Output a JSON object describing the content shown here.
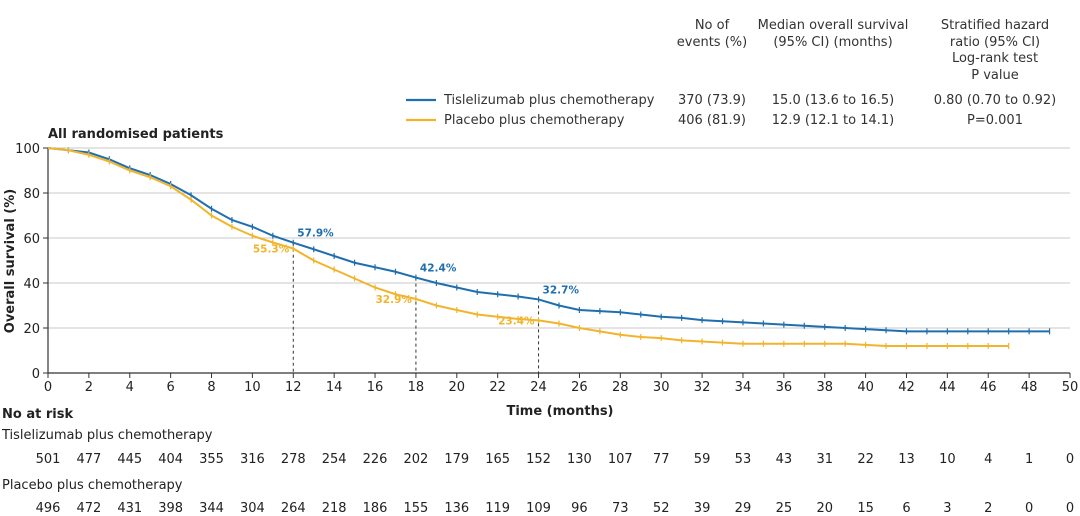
{
  "colors": {
    "tislelizumab": "#1f6fae",
    "placebo": "#f2b42c",
    "axis": "#333333",
    "grid": "#c8c8c8",
    "dash": "#333333"
  },
  "table_header": {
    "col1": [
      "No of",
      "events (%)"
    ],
    "col2": [
      "Median overall survival",
      "(95% CI) (months)"
    ],
    "col3": [
      "Stratified hazard",
      "ratio (95% CI)",
      "Log-rank test",
      "P value"
    ]
  },
  "legend_rows": [
    {
      "series": "Tislelizumab plus chemotherapy",
      "events": "370 (73.9)",
      "median": "15.0 (13.6 to 16.5)",
      "hr": "0.80 (0.70 to 0.92)"
    },
    {
      "series": "Placebo plus chemotherapy",
      "events": "406 (81.9)",
      "median": "12.9 (12.1 to 14.1)",
      "hr": "P=0.001"
    }
  ],
  "chart_data": {
    "type": "line",
    "subtitle": "All randomised patients",
    "xlabel": "Time (months)",
    "ylabel": "Overall survival (%)",
    "xlim": [
      0,
      50
    ],
    "ylim": [
      0,
      100
    ],
    "xticks": [
      0,
      2,
      4,
      6,
      8,
      10,
      12,
      14,
      16,
      18,
      20,
      22,
      24,
      26,
      28,
      30,
      32,
      34,
      36,
      38,
      40,
      42,
      44,
      46,
      48,
      50
    ],
    "yticks": [
      0,
      20,
      40,
      60,
      80,
      100
    ],
    "grid": true,
    "series": [
      {
        "name": "Tislelizumab plus chemotherapy",
        "x": [
          0,
          1,
          2,
          3,
          4,
          5,
          6,
          7,
          8,
          9,
          10,
          11,
          12,
          13,
          14,
          15,
          16,
          17,
          18,
          19,
          20,
          21,
          22,
          23,
          24,
          25,
          26,
          27,
          28,
          29,
          30,
          31,
          32,
          33,
          34,
          35,
          36,
          37,
          38,
          39,
          40,
          41,
          42,
          43,
          44,
          45,
          46,
          47,
          48,
          49
        ],
        "y": [
          100,
          99,
          98,
          95,
          91,
          88,
          84,
          79,
          73,
          68,
          65,
          61,
          57.9,
          55,
          52,
          49,
          47,
          45,
          42.4,
          40,
          38,
          36,
          35,
          34,
          32.7,
          30,
          28,
          27.5,
          27,
          26,
          25,
          24.5,
          23.5,
          23,
          22.5,
          22,
          21.5,
          21,
          20.5,
          20,
          19.5,
          19,
          18.5,
          18.5,
          18.5,
          18.5,
          18.5,
          18.5,
          18.5,
          18.5
        ]
      },
      {
        "name": "Placebo plus chemotherapy",
        "x": [
          0,
          1,
          2,
          3,
          4,
          5,
          6,
          7,
          8,
          9,
          10,
          11,
          12,
          13,
          14,
          15,
          16,
          17,
          18,
          19,
          20,
          21,
          22,
          23,
          24,
          25,
          26,
          27,
          28,
          29,
          30,
          31,
          32,
          33,
          34,
          35,
          36,
          37,
          38,
          39,
          40,
          41,
          42,
          43,
          44,
          45,
          46,
          47
        ],
        "y": [
          100,
          99,
          97,
          94,
          90,
          87,
          83,
          77,
          70,
          65,
          61,
          58,
          55.3,
          50,
          46,
          42,
          38,
          35,
          32.9,
          30,
          28,
          26,
          25,
          24,
          23.4,
          22,
          20,
          18.5,
          17,
          16,
          15.5,
          14.5,
          14,
          13.5,
          13,
          13,
          13,
          13,
          13,
          13,
          12.5,
          12,
          12,
          12,
          12,
          12,
          12,
          12
        ]
      }
    ],
    "annotations": [
      {
        "series": 0,
        "x": 12,
        "y": 57.9,
        "label": "57.9%"
      },
      {
        "series": 1,
        "x": 12,
        "y": 55.3,
        "label": "55.3%"
      },
      {
        "series": 0,
        "x": 18,
        "y": 42.4,
        "label": "42.4%"
      },
      {
        "series": 1,
        "x": 18,
        "y": 32.9,
        "label": "32.9%"
      },
      {
        "series": 0,
        "x": 24,
        "y": 32.7,
        "label": "32.7%"
      },
      {
        "series": 1,
        "x": 24,
        "y": 23.4,
        "label": "23.4%"
      }
    ],
    "reference_lines_x": [
      12,
      18,
      24
    ],
    "at_risk": {
      "title": "No at risk",
      "times": [
        0,
        2,
        4,
        6,
        8,
        10,
        12,
        14,
        16,
        18,
        20,
        22,
        24,
        26,
        28,
        30,
        32,
        34,
        36,
        38,
        40,
        42,
        44,
        46,
        48,
        50
      ],
      "rows": [
        {
          "label": "Tislelizumab plus chemotherapy",
          "values": [
            "501",
            "477",
            "445",
            "404",
            "355",
            "316",
            "278",
            "254",
            "226",
            "202",
            "179",
            "165",
            "152",
            "130",
            "107",
            "77",
            "59",
            "53",
            "43",
            "31",
            "22",
            "13",
            "10",
            "4",
            "1",
            "0"
          ]
        },
        {
          "label": "Placebo plus chemotherapy",
          "values": [
            "496",
            "472",
            "431",
            "398",
            "344",
            "304",
            "264",
            "218",
            "186",
            "155",
            "136",
            "119",
            "109",
            "96",
            "73",
            "52",
            "39",
            "29",
            "25",
            "20",
            "15",
            "6",
            "3",
            "2",
            "0",
            "0"
          ]
        }
      ]
    }
  }
}
